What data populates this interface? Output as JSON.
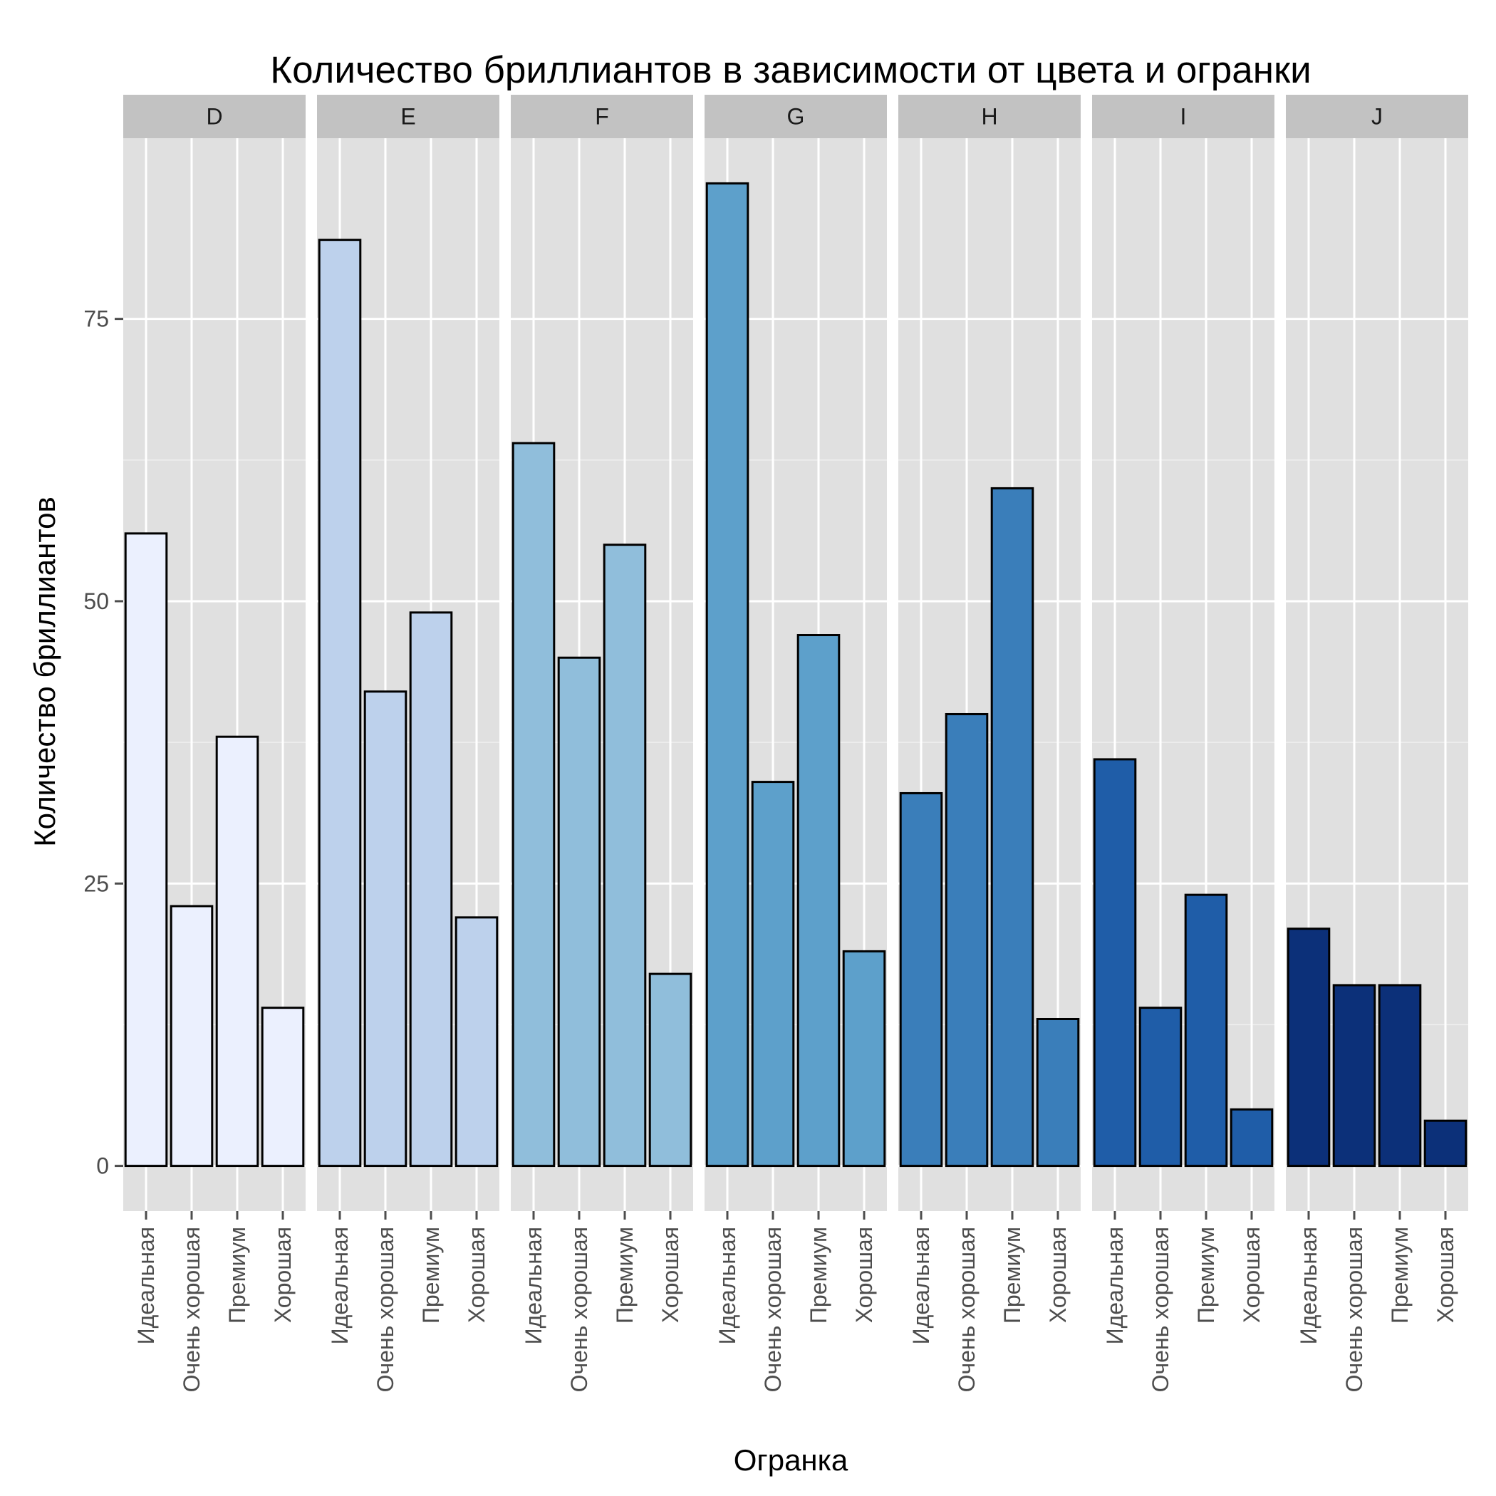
{
  "chart_data": {
    "type": "bar",
    "title": "Количество бриллиантов в зависимости от цвета и огранки",
    "xlabel": "Огранка",
    "ylabel": "Количество бриллиантов",
    "facet_by": "color",
    "categories": [
      "Идеальная",
      "Очень хорошая",
      "Премиум",
      "Хорошая"
    ],
    "ylim": [
      -4,
      91
    ],
    "yticks": [
      0,
      25,
      50,
      75
    ],
    "grid": true,
    "legend": "none",
    "facets": [
      {
        "name": "D",
        "fill": "#EBF0FE",
        "values": [
          56,
          23,
          38,
          14
        ]
      },
      {
        "name": "E",
        "fill": "#BDD1EC",
        "values": [
          82,
          42,
          49,
          22
        ]
      },
      {
        "name": "F",
        "fill": "#90BEDB",
        "values": [
          64,
          45,
          55,
          17
        ]
      },
      {
        "name": "G",
        "fill": "#5DA0CB",
        "values": [
          87,
          34,
          47,
          19
        ]
      },
      {
        "name": "H",
        "fill": "#3A7EBA",
        "values": [
          33,
          40,
          60,
          13
        ]
      },
      {
        "name": "I",
        "fill": "#1F5DA8",
        "values": [
          36,
          14,
          24,
          5
        ]
      },
      {
        "name": "J",
        "fill": "#0C3079",
        "values": [
          21,
          16,
          16,
          4
        ]
      }
    ]
  }
}
